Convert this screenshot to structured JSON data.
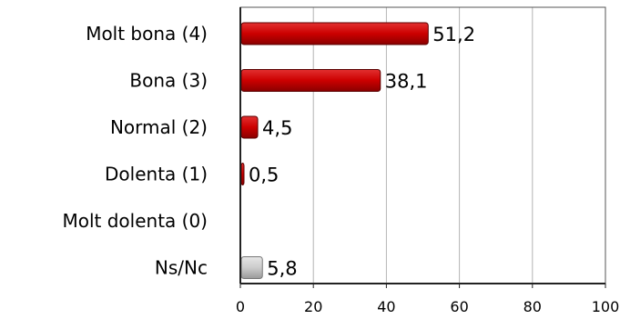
{
  "chart_data": {
    "type": "bar",
    "orientation": "horizontal",
    "categories": [
      "Molt bona (4)",
      "Bona (3)",
      "Normal (2)",
      "Dolenta (1)",
      "Molt dolenta (0)",
      "Ns/Nc"
    ],
    "values": [
      51.2,
      38.1,
      4.5,
      0.5,
      0,
      5.8
    ],
    "value_labels": [
      "51,2",
      "38,1",
      "4,5",
      "0,5",
      "",
      "5,8"
    ],
    "bar_colors": [
      "#cc0000",
      "#cc0000",
      "#cc0000",
      "#cc0000",
      "#cc0000",
      "#c8c8c8"
    ],
    "title": "",
    "xlabel": "",
    "ylabel": "",
    "xlim": [
      0,
      100
    ],
    "xticks": [
      0,
      20,
      40,
      60,
      80,
      100
    ],
    "grid": true
  }
}
